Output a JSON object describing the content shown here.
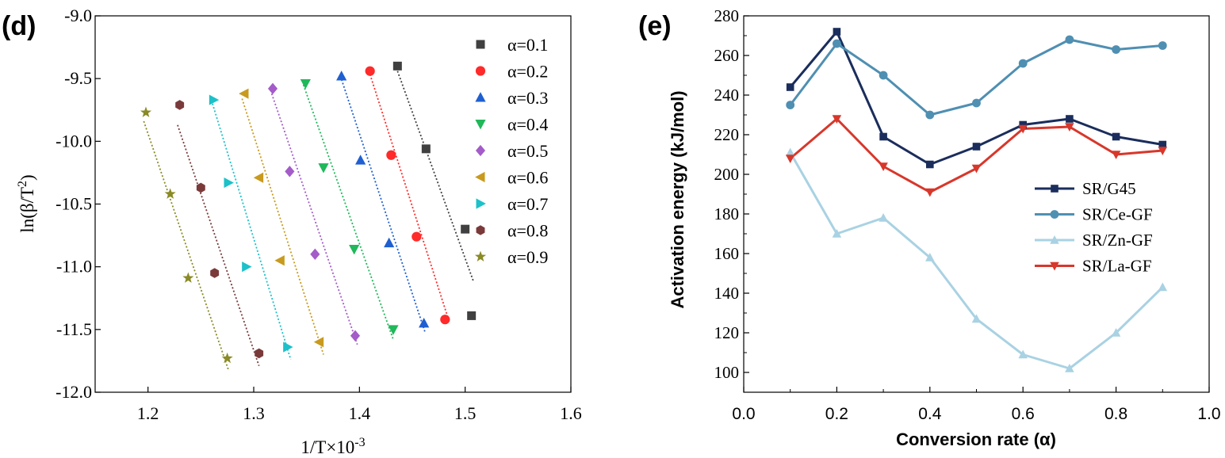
{
  "chart_data": [
    {
      "panel": "(d)",
      "type": "scatter",
      "xlabel": "1/T×10",
      "xlabel_exp": "-3",
      "ylabel_prefix": "ln(β/T",
      "ylabel_exp": "2",
      "ylabel_suffix": ")",
      "xlim": [
        1.15,
        1.6
      ],
      "ylim": [
        -12.0,
        -9.0
      ],
      "xticks": [
        "1.2",
        "1.3",
        "1.4",
        "1.5",
        "1.6"
      ],
      "yticks": [
        "-12.0",
        "-11.5",
        "-11.0",
        "-10.5",
        "-10.0",
        "-9.5",
        "-9.0"
      ],
      "legend_position": "top-right",
      "series": [
        {
          "name": "α=0.1",
          "color": "#404040",
          "marker": "square",
          "x": [
            1.436,
            1.463,
            1.5,
            1.506
          ],
          "y": [
            -9.4,
            -10.06,
            -10.7,
            -11.39
          ],
          "fit_x": [
            1.436,
            1.508
          ],
          "fit_y": [
            -9.44,
            -11.12
          ]
        },
        {
          "name": "α=0.2",
          "color": "#ff2a2a",
          "marker": "circle",
          "x": [
            1.41,
            1.43,
            1.454,
            1.481
          ],
          "y": [
            -9.44,
            -10.11,
            -10.76,
            -11.42
          ],
          "fit_x": [
            1.409,
            1.485
          ],
          "fit_y": [
            -9.44,
            -11.44
          ]
        },
        {
          "name": "α=0.3",
          "color": "#1f5fd1",
          "marker": "triangle-up",
          "x": [
            1.383,
            1.401,
            1.428,
            1.461
          ],
          "y": [
            -9.48,
            -10.15,
            -10.81,
            -11.45
          ],
          "fit_x": [
            1.382,
            1.462
          ],
          "fit_y": [
            -9.48,
            -11.52
          ]
        },
        {
          "name": "α=0.4",
          "color": "#1fb85a",
          "marker": "triangle-down",
          "x": [
            1.349,
            1.366,
            1.395,
            1.432
          ],
          "y": [
            -9.54,
            -10.21,
            -10.86,
            -11.5
          ],
          "fit_x": [
            1.347,
            1.432
          ],
          "fit_y": [
            -9.55,
            -11.58
          ]
        },
        {
          "name": "α=0.5",
          "color": "#a45cc9",
          "marker": "diamond",
          "x": [
            1.318,
            1.334,
            1.358,
            1.396
          ],
          "y": [
            -9.58,
            -10.24,
            -10.9,
            -11.55
          ],
          "fit_x": [
            1.317,
            1.398
          ],
          "fit_y": [
            -9.62,
            -11.62
          ]
        },
        {
          "name": "α=0.6",
          "color": "#c89a1e",
          "marker": "triangle-left",
          "x": [
            1.291,
            1.305,
            1.325,
            1.362
          ],
          "y": [
            -9.62,
            -10.29,
            -10.95,
            -11.6
          ],
          "fit_x": [
            1.289,
            1.366
          ],
          "fit_y": [
            -9.66,
            -11.7
          ]
        },
        {
          "name": "α=0.7",
          "color": "#1cc1c9",
          "marker": "triangle-right",
          "x": [
            1.262,
            1.276,
            1.293,
            1.332
          ],
          "y": [
            -9.67,
            -10.33,
            -11.0,
            -11.64
          ],
          "fit_x": [
            1.261,
            1.335
          ],
          "fit_y": [
            -9.7,
            -11.74
          ]
        },
        {
          "name": "α=0.8",
          "color": "#7a3a3a",
          "marker": "hexagon",
          "x": [
            1.23,
            1.25,
            1.263,
            1.305
          ],
          "y": [
            -9.71,
            -10.37,
            -11.05,
            -11.69
          ],
          "fit_x": [
            1.228,
            1.305
          ],
          "fit_y": [
            -9.87,
            -11.79
          ]
        },
        {
          "name": "α=0.9",
          "color": "#8a8a26",
          "marker": "star",
          "x": [
            1.198,
            1.221,
            1.238,
            1.275
          ],
          "y": [
            -9.77,
            -10.42,
            -11.09,
            -11.73
          ],
          "fit_x": [
            1.196,
            1.276
          ],
          "fit_y": [
            -9.84,
            -11.82
          ]
        }
      ]
    },
    {
      "panel": "(e)",
      "type": "line",
      "xlabel": "Conversion rate (α)",
      "ylabel": "Activation energy (kJ/mol)",
      "xlim": [
        0.0,
        1.0
      ],
      "ylim": [
        90,
        280
      ],
      "xticks": [
        "0.0",
        "0.2",
        "0.4",
        "0.6",
        "0.8",
        "1.0"
      ],
      "yticks": [
        "100",
        "120",
        "140",
        "160",
        "180",
        "200",
        "220",
        "240",
        "260",
        "280"
      ],
      "legend_position": "center-right",
      "x": [
        0.1,
        0.2,
        0.3,
        0.4,
        0.5,
        0.6,
        0.7,
        0.8,
        0.9
      ],
      "series": [
        {
          "name": "SR/G45",
          "color": "#1a2d5c",
          "marker": "square",
          "values": [
            244,
            272,
            219,
            205,
            214,
            225,
            228,
            219,
            215
          ]
        },
        {
          "name": "SR/Ce-GF",
          "color": "#4f8fb2",
          "marker": "circle",
          "values": [
            235,
            266,
            250,
            230,
            236,
            256,
            268,
            263,
            265
          ]
        },
        {
          "name": "SR/Zn-GF",
          "color": "#a9d2e3",
          "marker": "triangle-up",
          "values": [
            211,
            170,
            178,
            158,
            127,
            109,
            102,
            120,
            143
          ]
        },
        {
          "name": "SR/La-GF",
          "color": "#d8372b",
          "marker": "triangle-down",
          "values": [
            208,
            228,
            204,
            191,
            203,
            223,
            224,
            210,
            212
          ]
        }
      ]
    }
  ]
}
